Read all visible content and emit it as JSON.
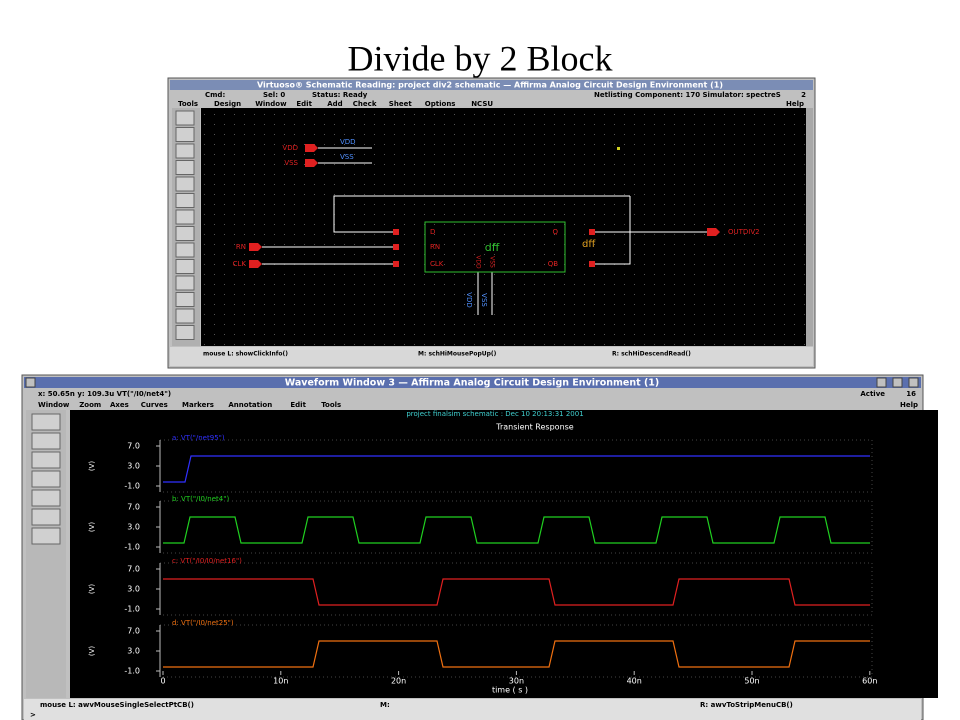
{
  "title": "Divide by 2 Block",
  "schematic": {
    "title_bar": "Virtuoso® Schematic Reading: project div2 schematic — Affirma Analog Circuit Design Environment (1)",
    "status": [
      "Cmd:",
      "Sel: 0",
      "Status: Ready",
      "Netlisting Component: 170  Simulator: spectreS",
      "2"
    ],
    "menu": [
      "Tools",
      "Design",
      "Window",
      "Edit",
      "Add",
      "Check",
      "Sheet",
      "Options",
      "NCSU"
    ],
    "help": "Help",
    "pins": {
      "vdd": "VDD",
      "vss": "VSS",
      "rn": "RN",
      "clk": "CLK",
      "out": "OUTDIV2"
    },
    "wire_labels": {
      "vdd": "VDD",
      "vss": "VSS"
    },
    "instance": {
      "d": "D",
      "rn": "RN",
      "clk": "CLK",
      "q": "Q",
      "qb": "QB",
      "cell": "dff",
      "name": "dff",
      "vdd": "VDD",
      "vss": "VSS"
    },
    "bottom_labels": {
      "vdd": "VDD",
      "vss": "VSS"
    },
    "footer": [
      "mouse L: showClickInfo()",
      "M: schHiMousePopUp()",
      "R: schHiDescendRead()"
    ]
  },
  "waveform": {
    "title_bar": "Waveform Window 3 — Affirma Analog Circuit Design Environment (1)",
    "coords": "x: 50.65n   y: 109.3u   VT(\"/I0/net4\")",
    "active": "Active",
    "active_num": "16",
    "menu": [
      "Window",
      "Zoom",
      "Axes",
      "Curves",
      "Markers",
      "Annotation",
      "Edit",
      "Tools"
    ],
    "help": "Help",
    "subtitle": "project finalsim schematic : Dec 10 20:13:31 2001",
    "plot_title": "Transient Response",
    "strips": [
      {
        "name": "a: VT(\"/net95\")",
        "color": "#3030ff"
      },
      {
        "name": "b: VT(\"/I0/net4\")",
        "color": "#20d020"
      },
      {
        "name": "c: VT(\"/I0/I0/net16\")",
        "color": "#e02020"
      },
      {
        "name": "d: VT(\"/I0/net25\")",
        "color": "#f07010"
      }
    ],
    "yticks": [
      "7.0",
      "3.0",
      "-1.0"
    ],
    "y_unit": "(V)",
    "xticks": [
      "0",
      "10n",
      "20n",
      "30n",
      "40n",
      "50n",
      "60n"
    ],
    "x_label": "time ( s )",
    "footer": [
      "mouse L: awvMouseSingleSelectPtCB()",
      "M:",
      "R: awvToStripMenuCB()"
    ],
    "prompt": ">"
  }
}
